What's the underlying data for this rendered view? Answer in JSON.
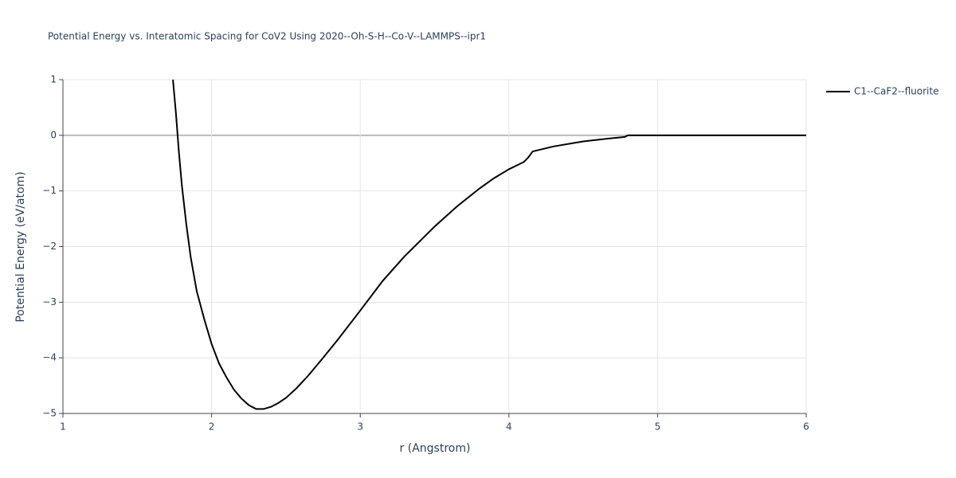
{
  "chart_data": {
    "type": "line",
    "title": "Potential Energy vs. Interatomic Spacing for CoV2 Using 2020--Oh-S-H--Co-V--LAMMPS--ipr1",
    "x_label": "r (Angstrom)",
    "y_label": "Potential Energy (eV/atom)",
    "x": [
      1.74,
      1.76,
      1.78,
      1.8,
      1.83,
      1.86,
      1.9,
      1.95,
      2.0,
      2.05,
      2.1,
      2.15,
      2.2,
      2.25,
      2.3,
      2.35,
      2.4,
      2.45,
      2.5,
      2.57,
      2.65,
      2.75,
      2.85,
      3.0,
      3.15,
      3.3,
      3.5,
      3.65,
      3.8,
      3.9,
      4.0,
      4.1,
      4.13,
      4.16,
      4.3,
      4.5,
      4.7,
      4.78,
      4.8,
      5.0,
      5.5,
      6.0
    ],
    "series": [
      {
        "name": "C1--CaF2--fluorite",
        "color": "#000000",
        "values": [
          1.0,
          0.4,
          -0.3,
          -0.9,
          -1.6,
          -2.2,
          -2.8,
          -3.3,
          -3.75,
          -4.1,
          -4.35,
          -4.57,
          -4.73,
          -4.85,
          -4.92,
          -4.92,
          -4.88,
          -4.81,
          -4.72,
          -4.55,
          -4.32,
          -4.0,
          -3.67,
          -3.15,
          -2.62,
          -2.17,
          -1.64,
          -1.28,
          -0.96,
          -0.77,
          -0.61,
          -0.48,
          -0.4,
          -0.29,
          -0.2,
          -0.11,
          -0.05,
          -0.03,
          0,
          0,
          0,
          0
        ]
      }
    ],
    "xlim": [
      1,
      6
    ],
    "xticks": [
      1,
      2,
      3,
      4,
      5,
      6
    ],
    "ylim": [
      -5,
      1
    ],
    "yticks": [
      {
        "value": -5,
        "label": "−5"
      },
      {
        "value": -4,
        "label": "−4"
      },
      {
        "value": -3,
        "label": "−3"
      },
      {
        "value": -2,
        "label": "−2"
      },
      {
        "value": -1,
        "label": "−1"
      },
      0,
      1
    ],
    "grid": true,
    "legend": "right"
  }
}
